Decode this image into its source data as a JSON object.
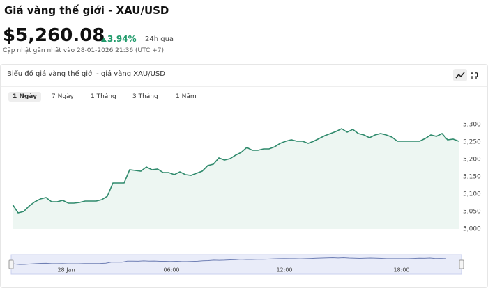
{
  "header": {
    "title": "Giá vàng thế giới - XAU/USD",
    "price": "$5,260.08",
    "change": "3.94%",
    "period": "24h qua",
    "updated": "Cập nhật gần nhất vào 28-01-2026 21:36 (UTC +7)"
  },
  "panel": {
    "title": "Biểu đồ giá vàng thế giới - giá vàng XAU/USD",
    "tabs": [
      "1 Ngày",
      "7 Ngày",
      "1 Tháng",
      "3 Tháng",
      "1 Năm"
    ]
  },
  "chart_data": {
    "type": "area",
    "color": "#2f8a6c",
    "values": [
      5070,
      5046,
      5050,
      5066,
      5078,
      5086,
      5090,
      5078,
      5078,
      5082,
      5074,
      5074,
      5076,
      5080,
      5080,
      5080,
      5084,
      5094,
      5132,
      5132,
      5132,
      5170,
      5168,
      5166,
      5178,
      5170,
      5172,
      5162,
      5162,
      5156,
      5164,
      5156,
      5154,
      5160,
      5166,
      5182,
      5186,
      5204,
      5198,
      5202,
      5212,
      5220,
      5234,
      5226,
      5226,
      5230,
      5230,
      5236,
      5246,
      5252,
      5256,
      5252,
      5252,
      5246,
      5252,
      5260,
      5268,
      5274,
      5280,
      5288,
      5278,
      5286,
      5274,
      5270,
      5262,
      5270,
      5274,
      5270,
      5264,
      5252,
      5252,
      5252,
      5252,
      5252,
      5260,
      5270,
      5266,
      5274,
      5256,
      5258,
      5252
    ],
    "ylim": [
      5000,
      5300
    ],
    "yticks": [
      {
        "value": 5000,
        "label": "5,000"
      },
      {
        "value": 5050,
        "label": "5,050"
      },
      {
        "value": 5100,
        "label": "5,100"
      },
      {
        "value": 5150,
        "label": "5,150"
      },
      {
        "value": 5200,
        "label": "5,200"
      },
      {
        "value": 5250,
        "label": "5,250"
      },
      {
        "value": 5300,
        "label": "5,300"
      }
    ],
    "navigator_labels": [
      "28 Jan",
      "06:00",
      "12:00",
      "18:00"
    ]
  }
}
